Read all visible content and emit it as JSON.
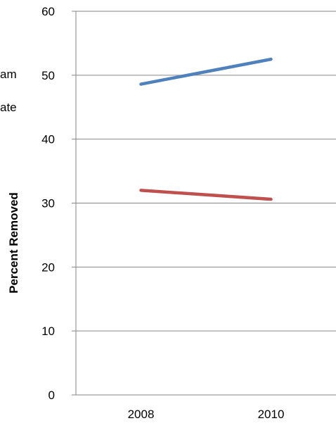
{
  "chart_data": {
    "type": "line",
    "title": "",
    "xlabel": "",
    "ylabel": "Percent Removed",
    "categories": [
      "2008",
      "2010"
    ],
    "ylim": [
      0,
      60
    ],
    "yticks": [
      0,
      10,
      20,
      30,
      40,
      50,
      60
    ],
    "grid": true,
    "series": [
      {
        "values": [
          48.6,
          52.5
        ],
        "color": "#4f81bd"
      },
      {
        "values": [
          32.0,
          30.6
        ],
        "color": "#c0504d"
      }
    ],
    "clipped_legend_text": [
      "am",
      "ate"
    ]
  }
}
